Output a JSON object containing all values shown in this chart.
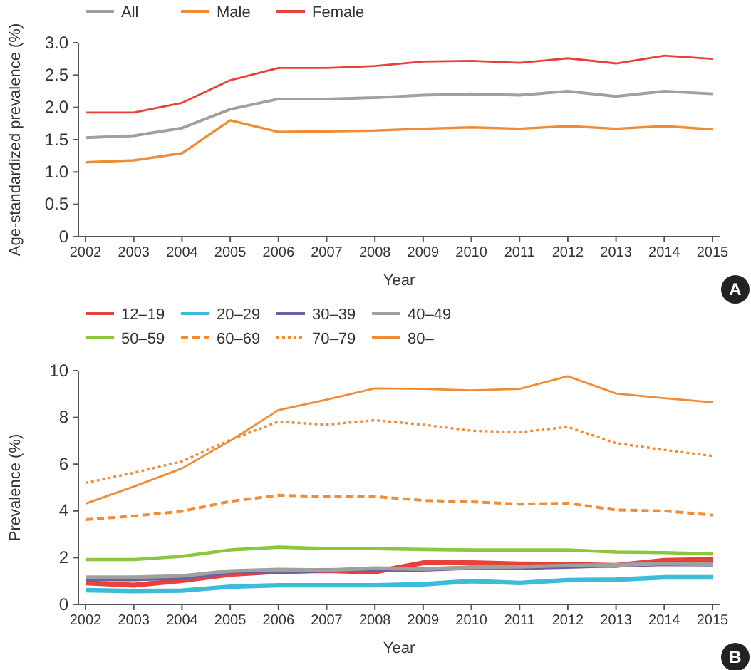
{
  "chart_data": [
    {
      "type": "line",
      "xlabel": "Year",
      "ylabel": "Age-standardized prevalence (%)",
      "categories": [
        "2002",
        "2003",
        "2004",
        "2005",
        "2006",
        "2007",
        "2008",
        "2009",
        "2010",
        "2011",
        "2012",
        "2013",
        "2014",
        "2015"
      ],
      "ylim": [
        0,
        3
      ],
      "yticks": [
        0,
        {
          "value": 0.5,
          "label": "0.5"
        },
        {
          "value": 1,
          "label": "1.0"
        },
        {
          "value": 1.5,
          "label": "1.5"
        },
        {
          "value": 2,
          "label": "2.0"
        },
        {
          "value": 2.5,
          "label": "2.5"
        },
        {
          "value": 3,
          "label": "3.0"
        }
      ],
      "legend": "top left",
      "grid": false,
      "annotations": [
        "A"
      ],
      "series": [
        {
          "name": "All",
          "color": "#a0a0a0",
          "values": [
            1.53,
            1.56,
            1.68,
            1.97,
            2.13,
            2.13,
            2.15,
            2.19,
            2.21,
            2.19,
            2.25,
            2.17,
            2.25,
            2.21
          ]
        },
        {
          "name": "Male",
          "color": "#f08c35",
          "values": [
            1.15,
            1.18,
            1.29,
            1.8,
            1.62,
            1.63,
            1.64,
            1.67,
            1.69,
            1.67,
            1.71,
            1.67,
            1.71,
            1.66
          ]
        },
        {
          "name": "Female",
          "color": "#e8413a",
          "values": [
            1.92,
            1.92,
            2.07,
            2.42,
            2.61,
            2.61,
            2.64,
            2.71,
            2.72,
            2.69,
            2.76,
            2.68,
            2.8,
            2.75
          ]
        }
      ]
    },
    {
      "type": "line",
      "xlabel": "Year",
      "ylabel": "Prevalence (%)",
      "categories": [
        "2002",
        "2003",
        "2004",
        "2005",
        "2006",
        "2007",
        "2008",
        "2009",
        "2010",
        "2011",
        "2012",
        "2013",
        "2014",
        "2015"
      ],
      "ylim": [
        0,
        10
      ],
      "yticks": [
        0,
        2,
        4,
        6,
        8,
        10
      ],
      "legend": "top left",
      "grid": false,
      "annotations": [
        "B"
      ],
      "series": [
        {
          "name": "12–19",
          "color": "#e8413a",
          "values": [
            0.92,
            0.82,
            1.02,
            1.29,
            1.41,
            1.45,
            1.39,
            1.78,
            1.78,
            1.73,
            1.71,
            1.67,
            1.88,
            1.92
          ]
        },
        {
          "name": "20–29",
          "color": "#3bbcd8",
          "values": [
            0.61,
            0.57,
            0.59,
            0.76,
            0.82,
            0.82,
            0.82,
            0.86,
            1.0,
            0.92,
            1.04,
            1.06,
            1.16,
            1.16
          ]
        },
        {
          "name": "30–39",
          "color": "#6b5fa5",
          "values": [
            1.08,
            1.08,
            1.14,
            1.37,
            1.39,
            1.45,
            1.47,
            1.49,
            1.57,
            1.57,
            1.61,
            1.67,
            1.73,
            1.71
          ]
        },
        {
          "name": "40–49",
          "color": "#a0a0a0",
          "values": [
            1.16,
            1.16,
            1.22,
            1.43,
            1.49,
            1.47,
            1.55,
            1.51,
            1.59,
            1.61,
            1.67,
            1.69,
            1.75,
            1.71
          ]
        },
        {
          "name": "50–59",
          "color": "#8cc63f",
          "values": [
            1.92,
            1.92,
            2.06,
            2.33,
            2.45,
            2.39,
            2.39,
            2.35,
            2.33,
            2.33,
            2.33,
            2.24,
            2.22,
            2.16
          ]
        },
        {
          "name": "60–69",
          "color": "#f08c35",
          "line_style": "dashed",
          "values": [
            3.63,
            3.78,
            3.98,
            4.41,
            4.67,
            4.61,
            4.61,
            4.45,
            4.39,
            4.29,
            4.33,
            4.04,
            4.0,
            3.82
          ]
        },
        {
          "name": "70–79",
          "color": "#f08c35",
          "line_style": "dotted",
          "values": [
            5.2,
            5.63,
            6.12,
            7.04,
            7.82,
            7.69,
            7.88,
            7.69,
            7.43,
            7.37,
            7.59,
            6.9,
            6.61,
            6.35
          ]
        },
        {
          "name": "80–",
          "color": "#f08c35",
          "values": [
            4.31,
            5.04,
            5.82,
            7.0,
            8.31,
            8.76,
            9.24,
            9.22,
            9.16,
            9.22,
            9.76,
            9.02,
            8.82,
            8.65
          ]
        }
      ]
    }
  ]
}
